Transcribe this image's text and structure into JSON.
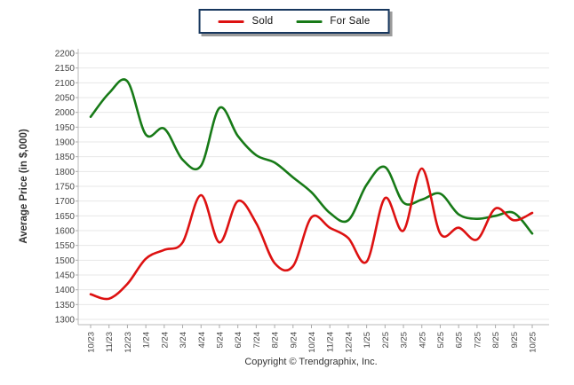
{
  "y_axis": {
    "title": "Average Price (in $,000)"
  },
  "footer": {
    "copyright": "Copyright © Trendgraphix, Inc."
  },
  "colors": {
    "sold_line": "#dd1111",
    "for_sale_line": "#177a17",
    "legend_border": "#17375e",
    "grid": "#e7e7e7",
    "axis": "#b8b8b8",
    "tick": "#aaaaaa"
  },
  "chart_data": {
    "type": "line",
    "title": "",
    "xlabel": "",
    "ylabel": "Average Price (in $,000)",
    "ylim": [
      1300,
      2200
    ],
    "ytick_step": 50,
    "grid": true,
    "legend_position": "top-center",
    "line_smoothing": true,
    "categories": [
      "10/23",
      "11/23",
      "12/23",
      "1/24",
      "2/24",
      "3/24",
      "4/24",
      "5/24",
      "6/24",
      "7/24",
      "8/24",
      "9/24",
      "10/24",
      "11/24",
      "12/24",
      "1/25",
      "2/25",
      "3/25",
      "4/25",
      "5/25",
      "6/25",
      "7/25",
      "8/25",
      "9/25",
      "10/25"
    ],
    "series": [
      {
        "name": "Sold",
        "color": "#dd1111",
        "values": [
          1385,
          1370,
          1420,
          1505,
          1535,
          1560,
          1720,
          1560,
          1700,
          1625,
          1490,
          1480,
          1645,
          1610,
          1575,
          1495,
          1710,
          1600,
          1810,
          1590,
          1610,
          1570,
          1675,
          1635,
          1660
        ]
      },
      {
        "name": "For Sale",
        "color": "#177a17",
        "values": [
          1985,
          2065,
          2105,
          1925,
          1945,
          1840,
          1820,
          2015,
          1920,
          1855,
          1830,
          1780,
          1730,
          1660,
          1635,
          1755,
          1815,
          1695,
          1705,
          1725,
          1655,
          1640,
          1650,
          1660,
          1590
        ]
      }
    ]
  }
}
